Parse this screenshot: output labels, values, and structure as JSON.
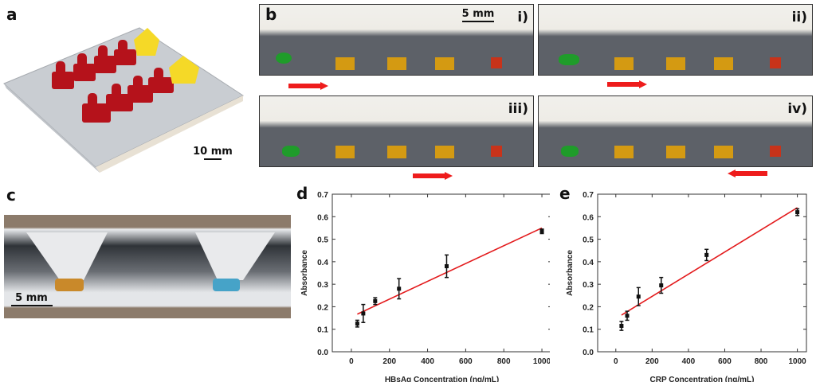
{
  "panels": {
    "a": {
      "label": "a",
      "scale_bar": "10 mm"
    },
    "b": {
      "label": "b",
      "scale_bar": "5 mm",
      "subpanels": [
        "i)",
        "ii)",
        "iii)",
        "iv)"
      ],
      "arrow_directions": [
        "right",
        "right",
        "right",
        "left"
      ]
    },
    "c": {
      "label": "c",
      "scale_bar": "5 mm"
    },
    "d": {
      "label": "d"
    },
    "e": {
      "label": "e"
    }
  },
  "colors": {
    "fit_line": "#e31a1c",
    "points": "#111111",
    "arrow": "#ee1c1c"
  },
  "chart_data": [
    {
      "type": "scatter",
      "panel": "d",
      "title": "",
      "xlabel": "HBsAg Concentration (ng/mL)",
      "ylabel": "Absorbance",
      "xlim": [
        -100,
        1050
      ],
      "ylim": [
        0.0,
        0.7
      ],
      "xticks": [
        0,
        200,
        400,
        600,
        800,
        1000
      ],
      "yticks": [
        "0.0",
        "0.1",
        "0.2",
        "0.3",
        "0.4",
        "0.5",
        "0.6",
        "0.7"
      ],
      "grid": false,
      "x": [
        31.25,
        62.5,
        125,
        250,
        500,
        1000
      ],
      "y": [
        0.125,
        0.17,
        0.225,
        0.28,
        0.38,
        0.535
      ],
      "yerr": [
        0.015,
        0.04,
        0.015,
        0.045,
        0.05,
        0.01
      ],
      "fit": {
        "x": [
          31.25,
          1000
        ],
        "y": [
          0.167,
          0.55
        ]
      }
    },
    {
      "type": "scatter",
      "panel": "e",
      "title": "",
      "xlabel": "CRP Concentration (ng/mL)",
      "ylabel": "Absorbance",
      "xlim": [
        -100,
        1050
      ],
      "ylim": [
        0.0,
        0.7
      ],
      "xticks": [
        0,
        200,
        400,
        600,
        800,
        1000
      ],
      "yticks": [
        "0.0",
        "0.1",
        "0.2",
        "0.3",
        "0.4",
        "0.5",
        "0.6",
        "0.7"
      ],
      "grid": false,
      "x": [
        31.25,
        62.5,
        125,
        250,
        500,
        1000
      ],
      "y": [
        0.115,
        0.16,
        0.245,
        0.295,
        0.43,
        0.62
      ],
      "yerr": [
        0.02,
        0.02,
        0.04,
        0.035,
        0.025,
        0.015
      ],
      "fit": {
        "x": [
          31.25,
          1000
        ],
        "y": [
          0.163,
          0.64
        ]
      }
    }
  ]
}
